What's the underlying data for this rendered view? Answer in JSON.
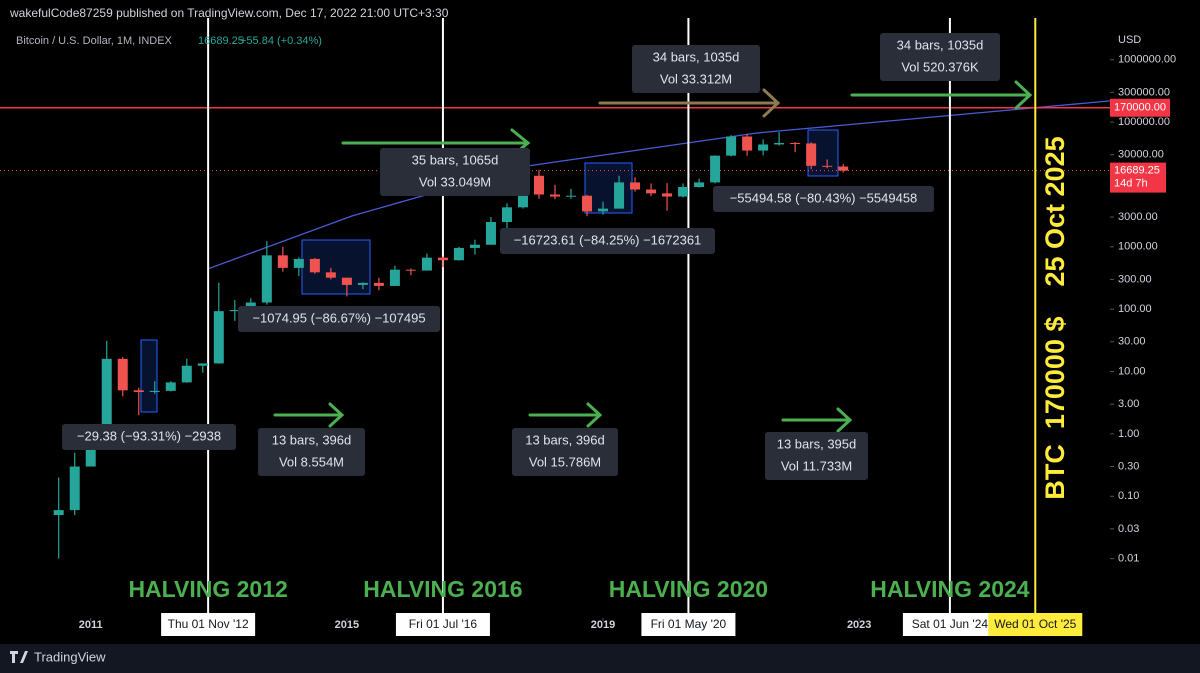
{
  "header": {
    "published": "wakefulCode87259 published on TradingView.com, Dec 17, 2022 21:00 UTC+3:30"
  },
  "footer": {
    "brand": "TradingView"
  },
  "chart_data": {
    "type": "candlestick",
    "title": "Bitcoin / U.S. Dollar, 1M, INDEX",
    "last_price": 16689.25,
    "change": "+55.84 (+0.34%)",
    "countdown": "14d 7h",
    "y_unit": "USD",
    "log_scale": true,
    "up_color": "#26a69a",
    "down_color": "#ef5350",
    "x": [
      "2010-07",
      "2010-10",
      "2011-01",
      "2011-04",
      "2011-07",
      "2011-10",
      "2012-01",
      "2012-04",
      "2012-07",
      "2012-10",
      "2013-01",
      "2013-04",
      "2013-07",
      "2013-10",
      "2014-01",
      "2014-04",
      "2014-07",
      "2014-10",
      "2015-01",
      "2015-04",
      "2015-07",
      "2015-10",
      "2016-01",
      "2016-04",
      "2016-07",
      "2016-10",
      "2017-01",
      "2017-04",
      "2017-07",
      "2017-10",
      "2018-01",
      "2018-04",
      "2018-07",
      "2018-10",
      "2019-01",
      "2019-04",
      "2019-07",
      "2019-10",
      "2020-01",
      "2020-04",
      "2020-07",
      "2020-10",
      "2021-01",
      "2021-04",
      "2021-07",
      "2021-10",
      "2022-01",
      "2022-04",
      "2022-07",
      "2022-10"
    ],
    "open": [
      0.05,
      0.06,
      0.3,
      0.8,
      16,
      5,
      4.7,
      4.9,
      6.7,
      12.4,
      13.5,
      93,
      97,
      128,
      730,
      460,
      640,
      390,
      320,
      245,
      264,
      236,
      430,
      416,
      670,
      610,
      960,
      1080,
      2500,
      4300,
      13800,
      6900,
      6400,
      6600,
      3700,
      4100,
      10800,
      8300,
      7200,
      6400,
      9100,
      10800,
      29000,
      58800,
      35000,
      43800,
      46300,
      45500,
      19900,
      19400
    ],
    "high": [
      0.2,
      0.5,
      1.2,
      31,
      17,
      5.5,
      7,
      7,
      16,
      13.5,
      266,
      140,
      150,
      1242,
      1000,
      680,
      660,
      460,
      320,
      270,
      320,
      500,
      450,
      780,
      700,
      1000,
      1300,
      3000,
      5000,
      19700,
      17200,
      9900,
      8500,
      6800,
      5300,
      13800,
      13100,
      10400,
      10500,
      10400,
      12400,
      29300,
      61800,
      64900,
      52900,
      69000,
      48000,
      47500,
      25200,
      21400
    ],
    "low": [
      0.01,
      0.05,
      0.3,
      0.8,
      4,
      2,
      4.4,
      4.8,
      6.6,
      9.6,
      13.3,
      65,
      65,
      118,
      400,
      340,
      370,
      300,
      160,
      210,
      200,
      235,
      350,
      415,
      470,
      600,
      750,
      1080,
      1800,
      4100,
      5900,
      5800,
      5900,
      3100,
      3300,
      4100,
      7700,
      6500,
      3800,
      6200,
      8900,
      10400,
      28200,
      28800,
      29300,
      42000,
      32900,
      17600,
      18200,
      15500
    ],
    "close": [
      0.06,
      0.3,
      0.8,
      16,
      5,
      4.7,
      4.9,
      6.7,
      12.4,
      13.5,
      93,
      97,
      128,
      730,
      460,
      640,
      390,
      320,
      245,
      264,
      236,
      430,
      416,
      670,
      610,
      960,
      1080,
      2500,
      4300,
      13800,
      6900,
      6400,
      6600,
      3700,
      4100,
      10800,
      8300,
      7200,
      6400,
      9100,
      10800,
      29000,
      58800,
      35000,
      43800,
      46300,
      45500,
      19900,
      19400,
      16689.25
    ],
    "xlim": [
      "2009-08",
      "2026-12"
    ],
    "xticks": [
      {
        "value": "2011-01",
        "label": "2011"
      },
      {
        "value": "2015-01",
        "label": "2015"
      },
      {
        "value": "2019-01",
        "label": "2019"
      },
      {
        "value": "2023-01",
        "label": "2023"
      }
    ],
    "ylim": [
      0.0015,
      3000000
    ],
    "yticks": [
      0.01,
      0.03,
      {
        "value": 0.1,
        "label": "0.10"
      },
      {
        "value": 0.3,
        "label": "0.30"
      },
      {
        "value": 1,
        "label": "1.00"
      },
      {
        "value": 3,
        "label": "3.00"
      },
      {
        "value": 10,
        "label": "10.00"
      },
      {
        "value": 30,
        "label": "30.00"
      },
      {
        "value": 100,
        "label": "100.00"
      },
      {
        "value": 300,
        "label": "300.00"
      },
      {
        "value": 1000,
        "label": "1000.00"
      },
      {
        "value": 3000,
        "label": "3000.00"
      },
      {
        "value": 30000,
        "label": "30000.00"
      },
      {
        "value": 100000,
        "label": "100000.00"
      },
      {
        "value": 300000,
        "label": "300000.00"
      },
      {
        "value": 1000000,
        "label": "1000000.00"
      }
    ],
    "hlines": [
      {
        "value": 170000,
        "label": "170000.00",
        "color": "#f23645"
      }
    ],
    "events": [
      {
        "date": "2012-11",
        "label": "Thu 01 Nov '12",
        "color": "#ffffff"
      },
      {
        "date": "2016-07",
        "label": "Fri 01 Jul '16",
        "color": "#ffffff"
      },
      {
        "date": "2020-05",
        "label": "Fri 01 May '20",
        "color": "#ffffff"
      },
      {
        "date": "2024-06",
        "label": "Sat 01 Jun '24",
        "color": "#ffffff"
      },
      {
        "date": "2025-10",
        "label": "Wed 01 Oct '25",
        "color": "#ffeb3b"
      }
    ],
    "halvings": [
      "HALVING 2012",
      "HALVING 2016",
      "HALVING 2020",
      "HALVING 2024"
    ],
    "trend": {
      "color": "#4a5bd6",
      "x": [
        "2012-11",
        "2015-02",
        "2017-11",
        "2021-06",
        "2026-12"
      ],
      "values": [
        444,
        3140,
        19900,
        67100,
        219000
      ]
    },
    "annotations": [
      {
        "lines": [
          "−29.38 (−93.31%) −2938"
        ]
      },
      {
        "lines": [
          "−1074.95 (−86.67%) −107495"
        ]
      },
      {
        "lines": [
          "35 bars, 1065d",
          "Vol 33.049M"
        ]
      },
      {
        "lines": [
          "−16723.61 (−84.25%) −1672361"
        ]
      },
      {
        "lines": [
          "34 bars, 1035d",
          "Vol 33.312M"
        ]
      },
      {
        "lines": [
          "−55494.58 (−80.43%) −5549458"
        ]
      },
      {
        "lines": [
          "34 bars, 1035d",
          "Vol 520.376K"
        ]
      },
      {
        "lines": [
          "13 bars, 396d",
          "Vol 8.554M"
        ]
      },
      {
        "lines": [
          "13 bars, 396d",
          "Vol 15.786M"
        ]
      },
      {
        "lines": [
          "13 bars, 395d",
          "Vol 11.733M"
        ]
      }
    ],
    "side_label": "BTC  170000 $    25 Oct 2025"
  }
}
